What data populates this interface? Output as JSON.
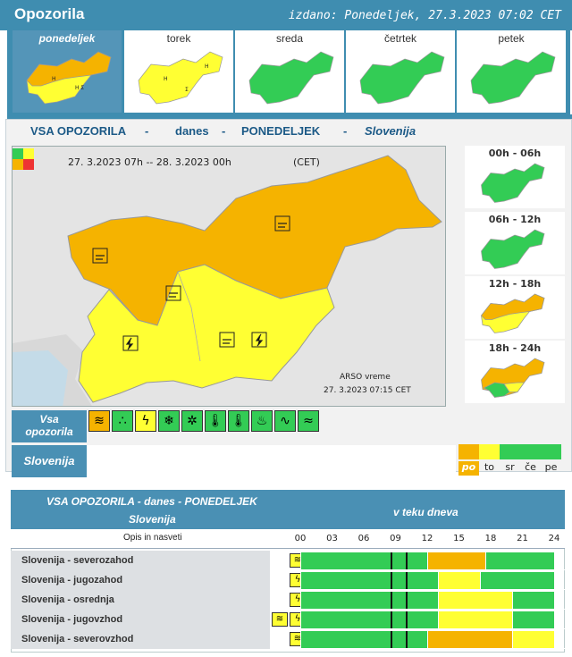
{
  "header": {
    "title": "Opozorila",
    "issued": "izdano: Ponedeljek, 27.3.2023 07:02 CET"
  },
  "days": [
    {
      "label": "ponedeljek",
      "active": true
    },
    {
      "label": "torek",
      "active": false
    },
    {
      "label": "sreda",
      "active": false
    },
    {
      "label": "četrtek",
      "active": false
    },
    {
      "label": "petek",
      "active": false
    }
  ],
  "map_title": {
    "part1": "VSA OPOZORILA",
    "dash1": "-",
    "part2": "danes",
    "dash2": "-",
    "part3": "PONEDELJEK",
    "dash3": "-",
    "part4": "Slovenija"
  },
  "map": {
    "range": "27. 3.2023  07h  --  28. 3.2023  00h",
    "tz": "(CET)",
    "source": "ARSO vreme",
    "stamp": "27. 3.2023  07:15 CET"
  },
  "periods": [
    {
      "label": "00h - 06h"
    },
    {
      "label": "06h - 12h"
    },
    {
      "label": "12h - 18h"
    },
    {
      "label": "18h - 24h"
    }
  ],
  "icons_row": {
    "label_line1": "Vsa",
    "label_line2": "opozorila",
    "icons": [
      "wind-icon",
      "rain-icon",
      "thunderstorm-icon",
      "snow-icon",
      "snow-rain-icon",
      "high-temperature-icon",
      "low-temperature-icon",
      "fire-icon",
      "coastal-wave-icon",
      "fog-icon"
    ]
  },
  "region_row": {
    "label": "Slovenija"
  },
  "legend": [
    {
      "text": "po",
      "color": "#f5b300",
      "active": true
    },
    {
      "text": "to",
      "color": "#ffff33",
      "active": false
    },
    {
      "text": "sr",
      "color": "#33cc55",
      "active": false
    },
    {
      "text": "če",
      "color": "#33cc55",
      "active": false
    },
    {
      "text": "pe",
      "color": "#33cc55",
      "active": false
    }
  ],
  "table": {
    "title": "VSA OPOZORILA - danes - PONEDELJEK",
    "subtitle": "Slovenija",
    "during_day": "v teku dneva",
    "desc_header": "Opis in nasveti",
    "hours": [
      "00",
      "03",
      "06",
      "09",
      "12",
      "15",
      "18",
      "21",
      "24"
    ],
    "rows": [
      {
        "label": "Slovenija - severozahod",
        "icons": [
          "wind-icon"
        ]
      },
      {
        "label": "Slovenija - jugozahod",
        "icons": [
          "thunderstorm-icon"
        ]
      },
      {
        "label": "Slovenija - osrednja",
        "icons": [
          "thunderstorm-icon"
        ]
      },
      {
        "label": "Slovenija - jugovzhod",
        "icons": [
          "wind-icon",
          "thunderstorm-icon"
        ]
      },
      {
        "label": "Slovenija - severovzhod",
        "icons": [
          "wind-icon"
        ]
      }
    ]
  },
  "colors": {
    "orange": "#f5b300",
    "yellow": "#ffff33",
    "green": "#33cc55",
    "blue": "#3f8db0"
  }
}
